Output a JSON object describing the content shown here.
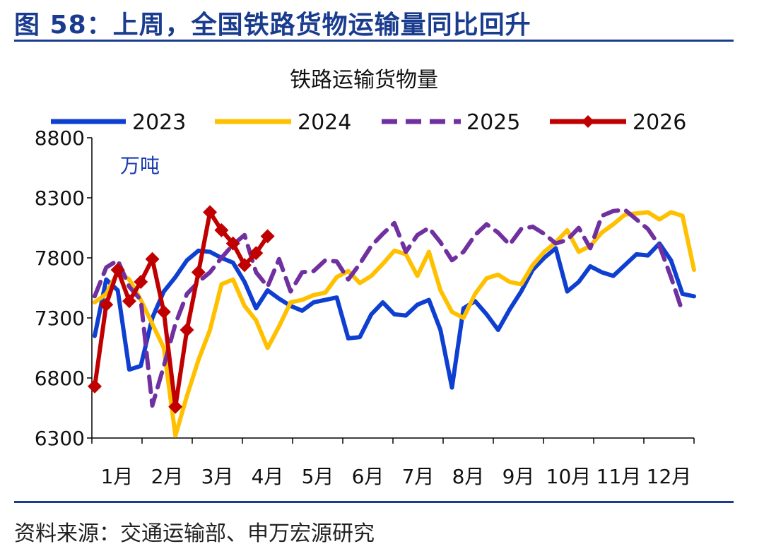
{
  "figure_title": "图 58：上周，全国铁路货物运输量同比回升",
  "source": "资料来源：交通运输部、申万宏源研究",
  "colors": {
    "2023": "#0f3fd1",
    "2024": "#ffc000",
    "2025": "#7030a0",
    "2026": "#c00000",
    "rule": "#1a3c8f"
  },
  "chart_data": {
    "type": "line",
    "title": "铁路运输货物量",
    "unit_label": "万吨",
    "ylim": [
      6300,
      8800
    ],
    "yticks": [
      6300,
      6800,
      7300,
      7800,
      8300,
      8800
    ],
    "month_labels": [
      "1月",
      "2月",
      "3月",
      "4月",
      "5月",
      "6月",
      "7月",
      "8月",
      "9月",
      "10月",
      "11月",
      "12月"
    ],
    "x_unit": "week",
    "legend_position": "top",
    "grid": false,
    "series": [
      {
        "name": "2023",
        "style": "solid",
        "marker": "none",
        "values": [
          7150,
          7620,
          7530,
          6870,
          6900,
          7300,
          7520,
          7640,
          7780,
          7860,
          7850,
          7800,
          7760,
          7600,
          7380,
          7530,
          7460,
          7400,
          7360,
          7430,
          7450,
          7470,
          7130,
          7140,
          7330,
          7430,
          7330,
          7320,
          7410,
          7450,
          7200,
          6720,
          7380,
          7440,
          7330,
          7200,
          7370,
          7520,
          7700,
          7800,
          7880,
          7520,
          7600,
          7730,
          7680,
          7650,
          7740,
          7830,
          7820,
          7920,
          7780,
          7500,
          7480
        ]
      },
      {
        "name": "2024",
        "style": "solid",
        "marker": "none",
        "values": [
          7430,
          7500,
          7680,
          7620,
          7450,
          7250,
          7050,
          6320,
          6650,
          6950,
          7200,
          7580,
          7620,
          7400,
          7280,
          7050,
          7230,
          7430,
          7450,
          7490,
          7510,
          7640,
          7690,
          7590,
          7650,
          7750,
          7860,
          7830,
          7650,
          7850,
          7530,
          7350,
          7300,
          7500,
          7630,
          7660,
          7600,
          7580,
          7740,
          7850,
          7930,
          8030,
          7850,
          7900,
          8010,
          8080,
          8160,
          8170,
          8180,
          8120,
          8180,
          8150,
          7700
        ]
      },
      {
        "name": "2025",
        "style": "dashed",
        "marker": "none",
        "values": [
          7480,
          7720,
          7780,
          7560,
          7450,
          6570,
          6900,
          7250,
          7500,
          7600,
          7680,
          7800,
          7910,
          7990,
          7680,
          7560,
          7790,
          7520,
          7680,
          7690,
          7780,
          7770,
          7620,
          7750,
          7900,
          8000,
          8090,
          7850,
          7990,
          8050,
          7930,
          7780,
          7850,
          7990,
          8080,
          8010,
          7910,
          8040,
          8060,
          8000,
          7920,
          7950,
          8050,
          7880,
          8150,
          8190,
          8200,
          8120,
          8040,
          7900,
          7640,
          7350
        ]
      },
      {
        "name": "2026",
        "style": "solid",
        "marker": "diamond",
        "values": [
          6730,
          7410,
          7700,
          7440,
          7600,
          7790,
          7350,
          6560,
          7200,
          7680,
          8180,
          8030,
          7920,
          7740,
          7840,
          7980
        ]
      }
    ]
  }
}
